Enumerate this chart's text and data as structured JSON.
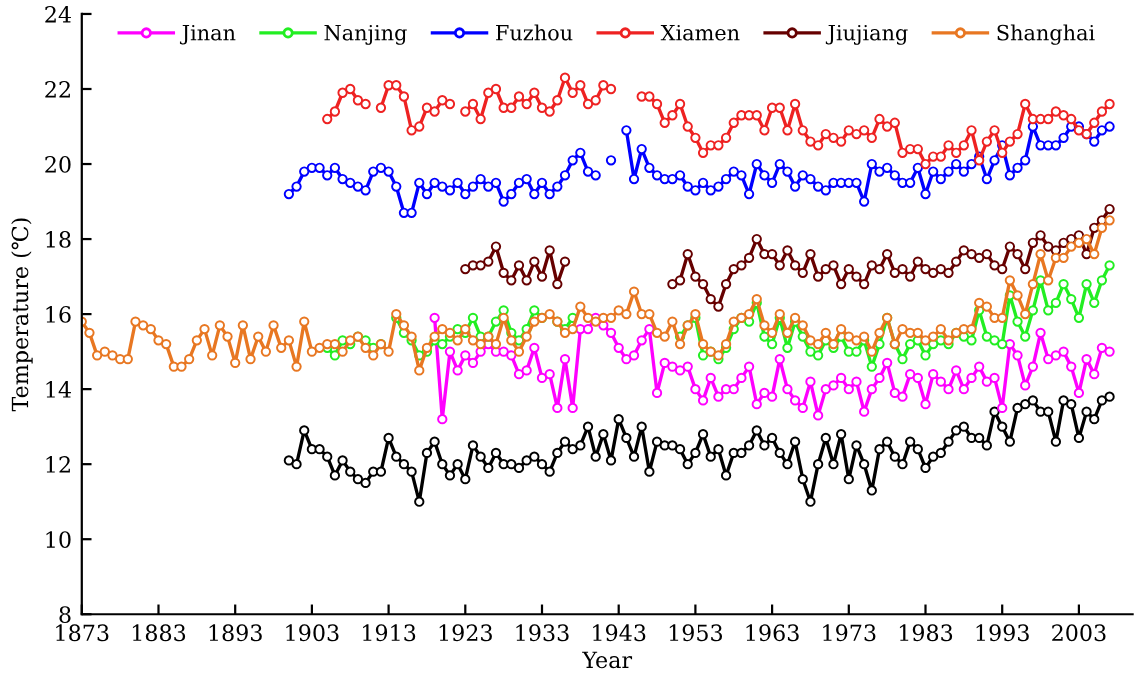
{
  "chart_data": {
    "type": "line",
    "xlabel": "Year",
    "ylabel": "Temperature (℃)",
    "xlim": [
      1873,
      2010
    ],
    "xticks": [
      1873,
      1883,
      1893,
      1903,
      1913,
      1923,
      1933,
      1943,
      1953,
      1963,
      1973,
      1983,
      1993,
      2003
    ],
    "ylim": [
      8,
      24
    ],
    "yticks": [
      8,
      10,
      12,
      14,
      16,
      18,
      20,
      22,
      24
    ],
    "grid": false,
    "legend": "top",
    "marker": "circle",
    "line_style": "solid",
    "series": [
      {
        "color": "#000000",
        "x": [
          1900,
          1901,
          1902,
          1903,
          1904,
          1905,
          1906,
          1907,
          1908,
          1909,
          1910,
          1911,
          1912,
          1913,
          1914,
          1915,
          1916,
          1917,
          1918,
          1919,
          1920,
          1921,
          1922,
          1923,
          1924,
          1925,
          1926,
          1927,
          1928,
          1929,
          1930,
          1931,
          1932,
          1933,
          1934,
          1935,
          1936,
          1937,
          1938,
          1939,
          1940,
          1941,
          1942,
          1943,
          1944,
          1945,
          1946,
          1947,
          1948,
          1949,
          1950,
          1951,
          1952,
          1953,
          1954,
          1955,
          1956,
          1957,
          1958,
          1959,
          1960,
          1961,
          1962,
          1963,
          1964,
          1965,
          1966,
          1967,
          1968,
          1969,
          1970,
          1971,
          1972,
          1973,
          1974,
          1975,
          1976,
          1977,
          1978,
          1979,
          1980,
          1981,
          1982,
          1983,
          1984,
          1985,
          1986,
          1987,
          1988,
          1989,
          1990,
          1991,
          1992,
          1993,
          1994,
          1995,
          1996,
          1997,
          1998,
          1999,
          2000,
          2001,
          2002,
          2003,
          2004,
          2005,
          2006,
          2007
        ],
        "values": [
          12.1,
          12.0,
          12.9,
          12.4,
          12.4,
          12.2,
          11.7,
          12.1,
          11.8,
          11.6,
          11.5,
          11.8,
          11.8,
          12.7,
          12.2,
          12.0,
          11.8,
          11.0,
          12.3,
          12.6,
          12.0,
          11.7,
          12.0,
          11.6,
          12.5,
          12.2,
          11.9,
          12.3,
          12.0,
          12.0,
          11.9,
          12.1,
          12.2,
          12.0,
          11.8,
          12.3,
          12.6,
          12.4,
          12.5,
          13.0,
          12.2,
          12.8,
          12.1,
          13.2,
          12.7,
          12.2,
          13.0,
          11.8,
          12.6,
          12.5,
          12.5,
          12.4,
          12.0,
          12.3,
          12.8,
          12.2,
          12.4,
          11.7,
          12.3,
          12.3,
          12.5,
          12.9,
          12.5,
          12.7,
          12.3,
          12.0,
          12.6,
          11.6,
          11.0,
          12.0,
          12.7,
          12.0,
          12.8,
          11.6,
          12.5,
          12.0,
          11.3,
          12.4,
          12.6,
          12.2,
          12.0,
          12.6,
          12.4,
          11.9,
          12.2,
          12.3,
          12.6,
          12.9,
          13.0,
          12.7,
          12.7,
          12.5,
          13.4,
          13.0,
          12.6,
          13.5,
          13.6,
          13.7,
          13.4,
          13.4,
          12.6,
          13.7,
          13.6,
          12.7,
          13.4,
          13.2,
          13.7,
          13.8
        ]
      },
      {
        "name": "Jinan",
        "color": "#ff00ff",
        "x": [
          1919,
          1920,
          1921,
          1922,
          1923,
          1924,
          1925,
          1926,
          1927,
          1928,
          1929,
          1930,
          1931,
          1932,
          1933,
          1934,
          1935,
          1936,
          1937,
          1938,
          1939,
          1940,
          1941,
          1942,
          1943,
          1944,
          1945,
          1946,
          1947,
          1948,
          1949,
          1950,
          1951,
          1952,
          1953,
          1954,
          1955,
          1956,
          1957,
          1958,
          1959,
          1960,
          1961,
          1962,
          1963,
          1964,
          1965,
          1966,
          1967,
          1968,
          1969,
          1970,
          1971,
          1972,
          1973,
          1974,
          1975,
          1976,
          1977,
          1978,
          1979,
          1980,
          1981,
          1982,
          1983,
          1984,
          1985,
          1986,
          1987,
          1988,
          1989,
          1990,
          1991,
          1992,
          1993,
          1994,
          1995,
          1996,
          1997,
          1998,
          1999,
          2000,
          2001,
          2002,
          2003,
          2004,
          2005,
          2006,
          2007
        ],
        "values": [
          15.9,
          13.2,
          15.0,
          14.5,
          14.9,
          14.7,
          15.0,
          15.2,
          15.0,
          15.0,
          14.9,
          14.4,
          14.5,
          15.1,
          14.3,
          14.4,
          13.5,
          14.8,
          13.5,
          15.6,
          15.6,
          15.9,
          15.7,
          15.5,
          15.1,
          14.8,
          14.9,
          15.3,
          15.6,
          13.9,
          14.7,
          14.6,
          14.5,
          14.6,
          14.0,
          13.7,
          14.3,
          13.8,
          14.0,
          14.0,
          14.3,
          14.6,
          13.6,
          13.9,
          13.8,
          14.8,
          14.0,
          13.7,
          13.5,
          14.2,
          13.3,
          14.0,
          14.1,
          14.3,
          14.0,
          14.2,
          13.4,
          14.0,
          14.3,
          14.7,
          13.9,
          13.8,
          14.4,
          14.3,
          13.6,
          14.4,
          14.2,
          14.0,
          14.5,
          14.0,
          14.3,
          14.6,
          14.2,
          14.3,
          13.5,
          15.2,
          14.9,
          14.1,
          14.6,
          15.5,
          14.8,
          14.9,
          15.0,
          14.6,
          13.9,
          14.8,
          14.4,
          15.1,
          15.0
        ]
      },
      {
        "name": "Nanjing",
        "color": "#22ee22",
        "x": [
          1905,
          1906,
          1907,
          1908,
          1909,
          1910,
          1911,
          1912,
          1913,
          1914,
          1915,
          1916,
          1917,
          1918,
          1919,
          1920,
          1921,
          1922,
          1923,
          1924,
          1925,
          1926,
          1927,
          1928,
          1929,
          1930,
          1931,
          1932,
          1933,
          1934,
          1935,
          1936,
          1937,
          1938,
          1939,
          1940,
          1941,
          1942,
          1943,
          1944,
          1945,
          1946,
          1947,
          1948,
          1949,
          1950,
          1951,
          1952,
          1953,
          1954,
          1955,
          1956,
          1957,
          1958,
          1959,
          1960,
          1961,
          1962,
          1963,
          1964,
          1965,
          1966,
          1967,
          1968,
          1969,
          1970,
          1971,
          1972,
          1973,
          1974,
          1975,
          1976,
          1977,
          1978,
          1979,
          1980,
          1981,
          1982,
          1983,
          1984,
          1985,
          1986,
          1987,
          1988,
          1989,
          1990,
          1991,
          1992,
          1993,
          1994,
          1995,
          1996,
          1997,
          1998,
          1999,
          2000,
          2001,
          2002,
          2003,
          2004,
          2005,
          2006,
          2007
        ],
        "values": [
          15.1,
          14.9,
          15.3,
          15.2,
          15.4,
          15.3,
          15.1,
          15.2,
          null,
          15.9,
          15.5,
          15.3,
          14.9,
          15.0,
          15.3,
          15.2,
          15.4,
          15.6,
          15.5,
          15.9,
          15.4,
          15.4,
          15.8,
          16.1,
          15.5,
          15.3,
          15.6,
          16.1,
          15.9,
          null,
          15.8,
          15.6,
          15.9,
          null,
          null,
          null,
          null,
          null,
          null,
          null,
          null,
          null,
          null,
          null,
          null,
          null,
          15.4,
          15.7,
          15.9,
          14.9,
          15.0,
          14.8,
          15.1,
          15.6,
          15.9,
          15.8,
          16.3,
          15.4,
          15.2,
          15.9,
          15.1,
          15.8,
          15.4,
          15.0,
          14.9,
          15.3,
          15.1,
          15.4,
          15.0,
          15.0,
          15.3,
          14.6,
          15.2,
          15.9,
          15.2,
          14.8,
          15.2,
          15.3,
          14.9,
          15.2,
          15.3,
          15.2,
          15.5,
          15.4,
          15.3,
          16.1,
          15.4,
          15.3,
          15.2,
          16.5,
          15.8,
          15.4,
          16.1,
          16.9,
          16.1,
          16.3,
          16.8,
          16.4,
          15.9,
          16.8,
          16.3,
          16.9,
          17.3
        ]
      },
      {
        "name": "Fuzhou",
        "color": "#0000ff",
        "x": [
          1900,
          1901,
          1902,
          1903,
          1904,
          1905,
          1906,
          1907,
          1908,
          1909,
          1910,
          1911,
          1912,
          1913,
          1914,
          1915,
          1916,
          1917,
          1918,
          1919,
          1920,
          1921,
          1922,
          1923,
          1924,
          1925,
          1926,
          1927,
          1928,
          1929,
          1930,
          1931,
          1932,
          1933,
          1934,
          1935,
          1936,
          1937,
          1938,
          1939,
          1940,
          1941,
          1942,
          1943,
          1944,
          1945,
          1946,
          1947,
          1948,
          1949,
          1950,
          1951,
          1952,
          1953,
          1954,
          1955,
          1956,
          1957,
          1958,
          1959,
          1960,
          1961,
          1962,
          1963,
          1964,
          1965,
          1966,
          1967,
          1968,
          1969,
          1970,
          1971,
          1972,
          1973,
          1974,
          1975,
          1976,
          1977,
          1978,
          1979,
          1980,
          1981,
          1982,
          1983,
          1984,
          1985,
          1986,
          1987,
          1988,
          1989,
          1990,
          1991,
          1992,
          1993,
          1994,
          1995,
          1996,
          1997,
          1998,
          1999,
          2000,
          2001,
          2002,
          2003,
          2004,
          2005,
          2006,
          2007
        ],
        "values": [
          19.2,
          19.4,
          19.8,
          19.9,
          19.9,
          19.7,
          19.9,
          19.6,
          19.5,
          19.4,
          19.3,
          19.8,
          19.9,
          19.8,
          19.4,
          18.7,
          18.7,
          19.5,
          19.2,
          19.5,
          19.4,
          19.3,
          19.5,
          19.2,
          19.4,
          19.6,
          19.4,
          19.5,
          19.0,
          19.2,
          19.5,
          19.6,
          19.2,
          19.5,
          19.2,
          19.4,
          19.7,
          20.1,
          20.3,
          19.8,
          19.7,
          null,
          20.1,
          null,
          20.9,
          19.6,
          20.4,
          19.9,
          19.7,
          19.6,
          19.6,
          19.7,
          19.4,
          19.3,
          19.5,
          19.3,
          19.4,
          19.6,
          19.8,
          19.7,
          19.2,
          20.0,
          19.7,
          19.5,
          20.0,
          19.8,
          19.4,
          19.7,
          19.6,
          19.4,
          19.3,
          19.5,
          19.5,
          19.5,
          19.5,
          19.0,
          20.0,
          19.8,
          19.9,
          19.7,
          19.5,
          19.5,
          19.9,
          19.2,
          19.8,
          19.6,
          19.8,
          20.0,
          19.8,
          20.0,
          20.2,
          19.6,
          20.1,
          20.5,
          19.7,
          19.9,
          20.1,
          21.0,
          20.5,
          20.5,
          20.5,
          20.7,
          21.0,
          21.0,
          20.8,
          20.6,
          20.9,
          21.0
        ]
      },
      {
        "name": "Xiamen",
        "color": "#ee2222",
        "x": [
          1905,
          1906,
          1907,
          1908,
          1909,
          1910,
          1911,
          1912,
          1913,
          1914,
          1915,
          1916,
          1917,
          1918,
          1919,
          1920,
          1921,
          1922,
          1923,
          1924,
          1925,
          1926,
          1927,
          1928,
          1929,
          1930,
          1931,
          1932,
          1933,
          1934,
          1935,
          1936,
          1937,
          1938,
          1939,
          1940,
          1941,
          1942,
          1943,
          1944,
          1945,
          1946,
          1947,
          1948,
          1949,
          1950,
          1951,
          1952,
          1953,
          1954,
          1955,
          1956,
          1957,
          1958,
          1959,
          1960,
          1961,
          1962,
          1963,
          1964,
          1965,
          1966,
          1967,
          1968,
          1969,
          1970,
          1971,
          1972,
          1973,
          1974,
          1975,
          1976,
          1977,
          1978,
          1979,
          1980,
          1981,
          1982,
          1983,
          1984,
          1985,
          1986,
          1987,
          1988,
          1989,
          1990,
          1991,
          1992,
          1993,
          1994,
          1995,
          1996,
          1997,
          1998,
          1999,
          2000,
          2001,
          2002,
          2003,
          2004,
          2005,
          2006,
          2007
        ],
        "values": [
          21.2,
          21.4,
          21.9,
          22.0,
          21.7,
          21.6,
          null,
          21.5,
          22.1,
          22.1,
          21.8,
          20.9,
          21.0,
          21.5,
          21.4,
          21.7,
          21.6,
          null,
          21.4,
          21.6,
          21.2,
          21.9,
          22.0,
          21.5,
          21.5,
          21.8,
          21.6,
          21.9,
          21.5,
          21.4,
          21.7,
          22.3,
          21.9,
          22.1,
          21.6,
          21.7,
          22.1,
          22.0,
          null,
          null,
          null,
          21.8,
          21.8,
          21.6,
          21.1,
          21.3,
          21.6,
          21.0,
          20.7,
          20.3,
          20.5,
          20.5,
          20.7,
          21.1,
          21.3,
          21.3,
          21.3,
          20.9,
          21.5,
          21.5,
          20.9,
          21.6,
          20.9,
          20.6,
          20.5,
          20.8,
          20.7,
          20.6,
          20.9,
          20.8,
          20.9,
          20.7,
          21.2,
          21.0,
          21.1,
          20.3,
          20.4,
          20.4,
          20.0,
          20.2,
          20.2,
          20.5,
          20.3,
          20.5,
          20.9,
          20.1,
          20.6,
          20.9,
          20.3,
          20.6,
          20.8,
          21.6,
          21.2,
          21.2,
          21.2,
          21.4,
          21.3,
          21.2,
          20.9,
          20.8,
          21.1,
          21.4,
          21.6
        ]
      },
      {
        "name": "Jiujiang",
        "color": "#660000",
        "x": [
          1923,
          1924,
          1925,
          1926,
          1927,
          1928,
          1929,
          1930,
          1931,
          1932,
          1933,
          1934,
          1935,
          1936,
          1937,
          1938,
          1939,
          1940,
          1941,
          1942,
          1943,
          1944,
          1945,
          1946,
          1947,
          1948,
          1949,
          1950,
          1951,
          1952,
          1953,
          1954,
          1955,
          1956,
          1957,
          1958,
          1959,
          1960,
          1961,
          1962,
          1963,
          1964,
          1965,
          1966,
          1967,
          1968,
          1969,
          1970,
          1971,
          1972,
          1973,
          1974,
          1975,
          1976,
          1977,
          1978,
          1979,
          1980,
          1981,
          1982,
          1983,
          1984,
          1985,
          1986,
          1987,
          1988,
          1989,
          1990,
          1991,
          1992,
          1993,
          1994,
          1995,
          1996,
          1997,
          1998,
          1999,
          2000,
          2001,
          2002,
          2003,
          2004,
          2005,
          2006,
          2007
        ],
        "values": [
          17.2,
          17.3,
          17.3,
          17.4,
          17.8,
          17.1,
          16.9,
          17.3,
          16.9,
          17.4,
          17.0,
          17.7,
          16.8,
          17.4,
          null,
          null,
          null,
          null,
          null,
          null,
          null,
          null,
          null,
          null,
          null,
          null,
          null,
          16.8,
          16.9,
          17.6,
          17.0,
          16.8,
          16.4,
          16.2,
          16.8,
          17.2,
          17.3,
          17.5,
          18.0,
          17.6,
          17.6,
          17.3,
          17.7,
          17.3,
          17.1,
          17.6,
          17.0,
          17.2,
          17.3,
          16.8,
          17.2,
          17.0,
          16.8,
          17.3,
          17.2,
          17.6,
          17.1,
          17.2,
          17.0,
          17.4,
          17.2,
          17.1,
          17.2,
          17.1,
          17.4,
          17.7,
          17.6,
          17.5,
          17.6,
          17.3,
          17.2,
          17.8,
          17.6,
          17.2,
          17.9,
          18.1,
          17.8,
          17.7,
          17.9,
          18.0,
          18.1,
          17.6,
          18.3,
          18.5,
          18.8
        ]
      },
      {
        "name": "Shanghai",
        "color": "#e87722",
        "x": [
          1873,
          1874,
          1875,
          1876,
          1877,
          1878,
          1879,
          1880,
          1881,
          1882,
          1883,
          1884,
          1885,
          1886,
          1887,
          1888,
          1889,
          1890,
          1891,
          1892,
          1893,
          1894,
          1895,
          1896,
          1897,
          1898,
          1899,
          1900,
          1901,
          1902,
          1903,
          1904,
          1905,
          1906,
          1907,
          1908,
          1909,
          1910,
          1911,
          1912,
          1913,
          1914,
          1915,
          1916,
          1917,
          1918,
          1919,
          1920,
          1921,
          1922,
          1923,
          1924,
          1925,
          1926,
          1927,
          1928,
          1929,
          1930,
          1931,
          1932,
          1933,
          1934,
          1935,
          1936,
          1937,
          1938,
          1939,
          1940,
          1941,
          1942,
          1943,
          1944,
          1945,
          1946,
          1947,
          1948,
          1949,
          1950,
          1951,
          1952,
          1953,
          1954,
          1955,
          1956,
          1957,
          1958,
          1959,
          1960,
          1961,
          1962,
          1963,
          1964,
          1965,
          1966,
          1967,
          1968,
          1969,
          1970,
          1971,
          1972,
          1973,
          1974,
          1975,
          1976,
          1977,
          1978,
          1979,
          1980,
          1981,
          1982,
          1983,
          1984,
          1985,
          1986,
          1987,
          1988,
          1989,
          1990,
          1991,
          1992,
          1993,
          1994,
          1995,
          1996,
          1997,
          1998,
          1999,
          2000,
          2001,
          2002,
          2003,
          2004,
          2005,
          2006,
          2007
        ],
        "values": [
          15.8,
          15.5,
          14.9,
          15.0,
          14.9,
          14.8,
          14.8,
          15.8,
          15.7,
          15.6,
          15.3,
          15.2,
          14.6,
          14.6,
          14.8,
          15.3,
          15.6,
          14.9,
          15.7,
          15.4,
          14.7,
          15.7,
          14.8,
          15.4,
          15.0,
          15.7,
          15.1,
          15.3,
          14.6,
          15.8,
          15.0,
          15.1,
          15.2,
          15.2,
          15.0,
          15.3,
          15.4,
          15.1,
          14.9,
          15.2,
          15.0,
          16.0,
          15.7,
          15.4,
          14.5,
          15.1,
          15.4,
          15.6,
          15.5,
          15.3,
          15.6,
          15.3,
          15.2,
          15.4,
          15.2,
          15.9,
          15.3,
          15.0,
          15.4,
          15.8,
          15.9,
          16.0,
          15.8,
          15.5,
          15.6,
          16.2,
          15.9,
          15.8,
          15.9,
          15.9,
          16.1,
          16.0,
          16.6,
          16.0,
          16.0,
          15.5,
          15.4,
          15.8,
          15.2,
          15.7,
          16.0,
          15.2,
          15.0,
          14.9,
          15.2,
          15.8,
          15.9,
          16.0,
          16.4,
          15.7,
          15.5,
          16.0,
          15.5,
          15.9,
          15.7,
          15.3,
          15.2,
          15.5,
          15.2,
          15.6,
          15.4,
          15.3,
          15.4,
          15.0,
          15.5,
          15.9,
          15.2,
          15.6,
          15.5,
          15.5,
          15.3,
          15.4,
          15.6,
          15.3,
          15.5,
          15.6,
          15.6,
          16.3,
          16.2,
          15.9,
          15.9,
          16.9,
          16.5,
          16.0,
          16.8,
          17.6,
          16.9,
          17.5,
          17.5,
          17.8,
          17.9,
          18.0,
          17.6,
          18.3,
          18.5
        ]
      }
    ]
  }
}
